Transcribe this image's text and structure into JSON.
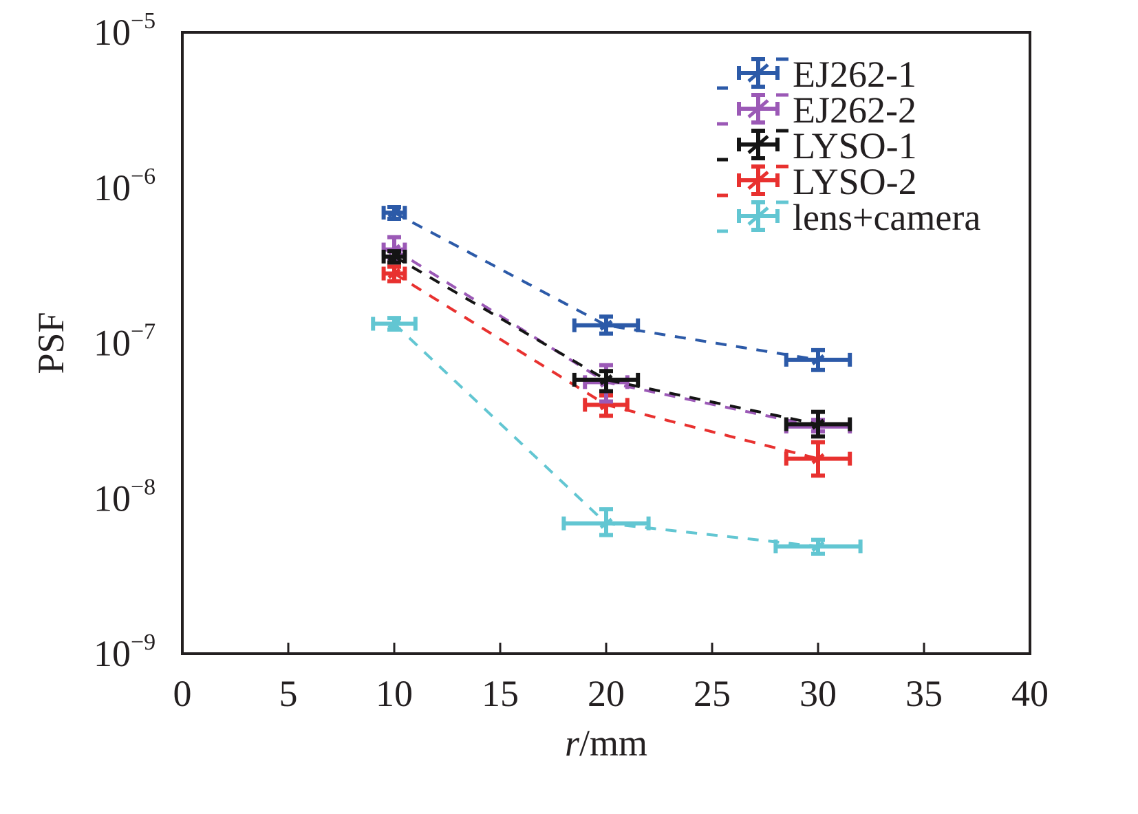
{
  "chart_data": {
    "type": "line",
    "title": "",
    "xlabel_italic": "r",
    "xlabel_rest": "/mm",
    "ylabel": "PSF",
    "xlim": [
      0,
      40
    ],
    "ylim": [
      1e-09,
      1e-05
    ],
    "yscale": "log",
    "grid": false,
    "legend_position": "top-right",
    "x_ticks": [
      0,
      5,
      10,
      15,
      20,
      25,
      30,
      35,
      40
    ],
    "x_tick_labels": [
      "0",
      "5",
      "10",
      "15",
      "20",
      "25",
      "30",
      "35",
      "40"
    ],
    "y_ticks": [
      {
        "value": 1e-05,
        "base": "10",
        "exp": "−5"
      },
      {
        "value": 1e-06,
        "base": "10",
        "exp": "−6"
      },
      {
        "value": 1e-07,
        "base": "10",
        "exp": "−7"
      },
      {
        "value": 1e-08,
        "base": "10",
        "exp": "−8"
      },
      {
        "value": 1e-09,
        "base": "10",
        "exp": "−9"
      }
    ],
    "x": [
      10,
      20,
      30
    ],
    "series": [
      {
        "name": "EJ262-1",
        "color": "#2c5aa8",
        "values": [
          6.9e-07,
          1.3e-07,
          7.8e-08
        ],
        "yerr_low": [
          6.3e-07,
          1.15e-07,
          6.7e-08
        ],
        "yerr_high": [
          7.5e-07,
          1.48e-07,
          9e-08
        ],
        "xerr": [
          0.5,
          1.5,
          1.5
        ]
      },
      {
        "name": "EJ262-2",
        "color": "#9b59b6",
        "values": [
          4e-07,
          5.6e-08,
          2.9e-08
        ],
        "yerr_low": [
          3.5e-07,
          4.2e-08,
          2.7e-08
        ],
        "yerr_high": [
          4.8e-07,
          7.2e-08,
          3.2e-08
        ],
        "xerr": [
          0.5,
          1.0,
          1.5
        ]
      },
      {
        "name": "LYSO-1",
        "color": "#141414",
        "values": [
          3.6e-07,
          5.8e-08,
          3e-08
        ],
        "yerr_low": [
          3.3e-07,
          4.9e-08,
          2.5e-08
        ],
        "yerr_high": [
          3.9e-07,
          6.6e-08,
          3.6e-08
        ],
        "xerr": [
          0.5,
          1.5,
          1.5
        ]
      },
      {
        "name": "LYSO-2",
        "color": "#e8312f",
        "values": [
          2.8e-07,
          4e-08,
          1.8e-08
        ],
        "yerr_low": [
          2.5e-07,
          3.4e-08,
          1.4e-08
        ],
        "yerr_high": [
          3.1e-07,
          4.6e-08,
          2.3e-08
        ],
        "xerr": [
          0.5,
          1.0,
          1.5
        ]
      },
      {
        "name": "lens+camera",
        "color": "#62c6d2",
        "values": [
          1.33e-07,
          6.9e-09,
          4.9e-09
        ],
        "yerr_low": [
          1.22e-07,
          5.8e-09,
          4.4e-09
        ],
        "yerr_high": [
          1.45e-07,
          8.5e-09,
          5.4e-09
        ],
        "xerr": [
          1.0,
          2.0,
          2.0
        ]
      }
    ]
  }
}
